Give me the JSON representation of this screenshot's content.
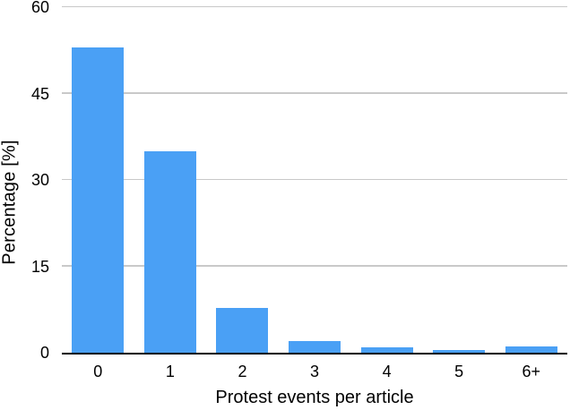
{
  "chart_data": {
    "type": "bar",
    "categories": [
      "0",
      "1",
      "2",
      "3",
      "4",
      "5",
      "6+"
    ],
    "values": [
      53,
      35,
      7.8,
      2.1,
      1,
      0.5,
      1.1
    ],
    "title": "",
    "xlabel": "Protest events per article",
    "ylabel": "Percentage [%]",
    "ylim": [
      0,
      60
    ],
    "yticks": [
      0,
      15,
      30,
      45,
      60
    ],
    "bar_color": "#4aa0f5",
    "gridline_color": "#c9c9c9",
    "axis_color": "#000000",
    "grid": true,
    "legend_position": "none"
  }
}
